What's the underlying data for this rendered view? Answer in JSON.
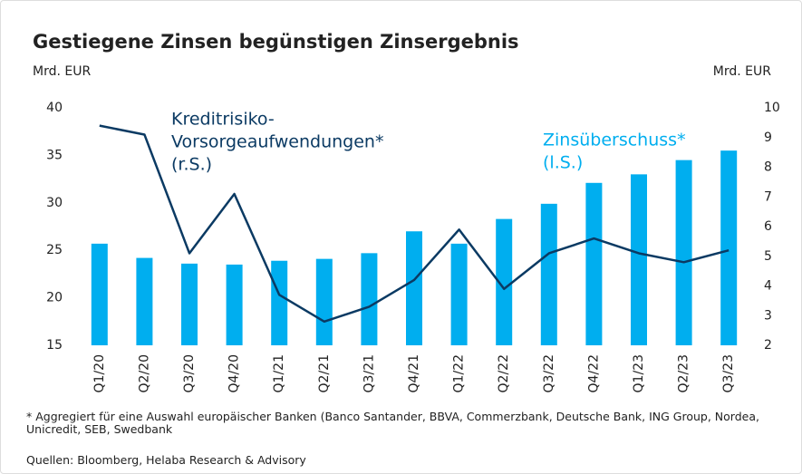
{
  "chart_data": {
    "type": "bar_line",
    "title": "Gestiegene Zinsen begünstigen Zinsergebnis",
    "y_label": "Mrd. EUR",
    "y2_label": "Mrd. EUR",
    "categories": [
      "Q1/20",
      "Q2/20",
      "Q3/20",
      "Q4/20",
      "Q1/21",
      "Q2/21",
      "Q3/21",
      "Q4/21",
      "Q1/22",
      "Q2/22",
      "Q3/22",
      "Q4/22",
      "Q1/23",
      "Q2/23",
      "Q3/23"
    ],
    "series": [
      {
        "name": [
          "Zinsüberschuss*",
          "(l.S.)"
        ],
        "type": "bar",
        "color": "#00aeef",
        "values": [
          25.7,
          24.2,
          23.6,
          23.5,
          23.9,
          24.1,
          24.7,
          27.0,
          25.7,
          28.3,
          29.9,
          32.1,
          33.0,
          34.5,
          35.5
        ]
      },
      {
        "name": [
          "Kreditrisiko-",
          "Vorsorgeaufwendungen*",
          "(r.S.)"
        ],
        "type": "line",
        "axis": "y2",
        "color": "#0b3a63",
        "values": [
          9.4,
          9.1,
          5.1,
          7.1,
          3.7,
          2.8,
          3.3,
          4.2,
          5.9,
          3.9,
          5.1,
          5.6,
          5.1,
          4.8,
          5.2
        ]
      }
    ],
    "ylim": [
      15,
      40
    ],
    "yticks": [
      15,
      20,
      25,
      30,
      35,
      40
    ],
    "y2lim": [
      2,
      10
    ],
    "y2ticks": [
      2,
      3,
      4,
      5,
      6,
      7,
      8,
      9,
      10
    ],
    "footnote": "* Aggregiert für eine Auswahl europäischer Banken (Banco Santander, BBVA, Commerzbank, Deutsche Bank, ING Group, Nordea, Unicredit, SEB, Swedbank",
    "source": "Quellen: Bloomberg, Helaba Research & Advisory"
  }
}
